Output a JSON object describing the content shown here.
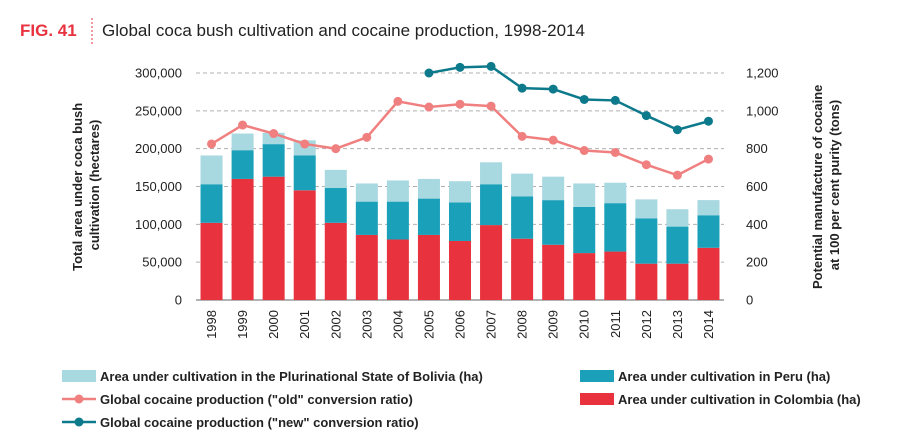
{
  "figure": {
    "label": "FIG. 41",
    "title": "Global coca bush cultivation and cocaine production, 1998-2014"
  },
  "colors": {
    "bolivia": "#a8d8e0",
    "peru": "#1aa0b8",
    "colombia": "#e8333f",
    "old_line": "#f08080",
    "new_line": "#0d7a8c",
    "fig_label": "#e8333f"
  },
  "chart_data": {
    "type": "bar",
    "categories": [
      "1998",
      "1999",
      "2000",
      "2001",
      "2002",
      "2003",
      "2004",
      "2005",
      "2006",
      "2007",
      "2008",
      "2009",
      "2010",
      "2011",
      "2012",
      "2013",
      "2014"
    ],
    "ylabel": "Total area under coca bush cultivation (hectares)",
    "y2label": "Potential manufacture of cocaine at 100 per cent purity (tons)",
    "ylim": [
      0,
      300000
    ],
    "y2lim": [
      0,
      1200
    ],
    "yticks": [
      "0",
      "50,000",
      "100,000",
      "150,000",
      "200,000",
      "250,000",
      "300,000"
    ],
    "y2ticks": [
      "0",
      "200",
      "400",
      "600",
      "800",
      "1,000",
      "1,200"
    ],
    "grid": true,
    "legend_placement": "bottom",
    "stacked_series": [
      {
        "name": "Area under cultivation in Colombia (ha)",
        "color_key": "colombia",
        "values": [
          102000,
          160000,
          163000,
          145000,
          102000,
          86000,
          80000,
          86000,
          78000,
          99000,
          81000,
          73000,
          62000,
          64000,
          48000,
          48000,
          69000
        ]
      },
      {
        "name": "Area under cultivation in Peru (ha)",
        "color_key": "peru",
        "values": [
          51000,
          38000,
          43000,
          46000,
          46000,
          44000,
          50000,
          48000,
          51000,
          54000,
          56000,
          59000,
          61000,
          64000,
          60000,
          49000,
          43000
        ]
      },
      {
        "name": "Area under cultivation in the Plurinational State of Bolivia (ha)",
        "color_key": "bolivia",
        "values": [
          38000,
          22000,
          15000,
          20000,
          24000,
          24000,
          28000,
          26000,
          28000,
          29000,
          30000,
          31000,
          31000,
          27000,
          25000,
          23000,
          20000
        ]
      }
    ],
    "line_series": [
      {
        "name": "Global cocaine production (\"old\" conversion ratio)",
        "color_key": "old_line",
        "values": [
          825,
          925,
          880,
          825,
          800,
          860,
          1050,
          1020,
          1035,
          1025,
          865,
          845,
          790,
          780,
          715,
          660,
          745
        ]
      },
      {
        "name": "Global cocaine production  (\"new\" conversion ratio)",
        "color_key": "new_line",
        "values": [
          null,
          null,
          null,
          null,
          null,
          null,
          null,
          1200,
          1230,
          1235,
          1120,
          1115,
          1060,
          1055,
          975,
          900,
          945
        ]
      }
    ]
  },
  "legend": [
    {
      "label": "Area under cultivation in the Plurinational State of Bolivia (ha)",
      "kind": "box",
      "color_key": "bolivia"
    },
    {
      "label": "Area under cultivation in Peru (ha)",
      "kind": "box",
      "color_key": "peru"
    },
    {
      "label": "Global cocaine production (\"old\" conversion ratio)",
      "kind": "line",
      "color_key": "old_line"
    },
    {
      "label": "Area under cultivation in Colombia (ha)",
      "kind": "box",
      "color_key": "colombia"
    },
    {
      "label": "Global cocaine production  (\"new\" conversion ratio)",
      "kind": "line",
      "color_key": "new_line"
    }
  ]
}
